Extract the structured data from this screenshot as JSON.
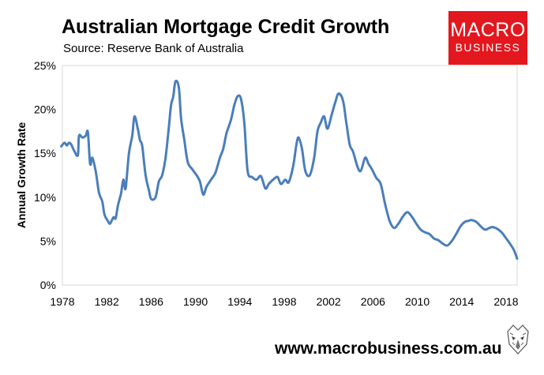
{
  "header": {
    "title": "Australian Mortgage Credit Growth",
    "subtitle": "Source: Reserve Bank of Australia"
  },
  "logo": {
    "line1": "MACRO",
    "line2": "BUSINESS"
  },
  "footer": {
    "url": "www.macrobusiness.com.au"
  },
  "colors": {
    "line": "#4a7ebb",
    "plot_border": "#d9d9d9",
    "logo_bg": "#e3171e"
  },
  "chart_data": {
    "type": "line",
    "title": "Australian Mortgage Credit Growth",
    "subtitle": "Source: Reserve Bank of Australia",
    "xlabel": "",
    "ylabel": "Annual Growth Rate",
    "xlim": [
      1978,
      2019
    ],
    "ylim": [
      0,
      25
    ],
    "x_ticks": [
      1978,
      1982,
      1986,
      1990,
      1994,
      1998,
      2002,
      2006,
      2010,
      2014,
      2018
    ],
    "x_tick_labels": [
      "1978",
      "1982",
      "1986",
      "1990",
      "1994",
      "1998",
      "2002",
      "2006",
      "2010",
      "2014",
      "2018"
    ],
    "y_ticks": [
      0,
      5,
      10,
      15,
      20,
      25
    ],
    "y_tick_labels": [
      "0%",
      "5%",
      "10%",
      "15%",
      "20%",
      "25%"
    ],
    "grid": false,
    "legend": "none",
    "series": [
      {
        "color": "#4a7ebb",
        "x": [
          1977.9,
          1978.2,
          1978.4,
          1978.6,
          1978.8,
          1979.1,
          1979.4,
          1979.5,
          1979.8,
          1980.1,
          1980.3,
          1980.5,
          1980.7,
          1981.0,
          1981.3,
          1981.6,
          1981.8,
          1982.1,
          1982.3,
          1982.6,
          1982.8,
          1983.0,
          1983.2,
          1983.3,
          1983.5,
          1983.7,
          1984.0,
          1984.3,
          1984.5,
          1984.8,
          1985.0,
          1985.2,
          1985.5,
          1985.8,
          1986.0,
          1986.4,
          1986.7,
          1987.0,
          1987.3,
          1987.6,
          1987.8,
          1988.0,
          1988.2,
          1988.5,
          1988.7,
          1989.0,
          1989.3,
          1989.7,
          1990.1,
          1990.4,
          1990.7,
          1991.0,
          1991.4,
          1991.8,
          1992.2,
          1992.5,
          1992.8,
          1993.2,
          1993.5,
          1993.8,
          1994.1,
          1994.4,
          1994.7,
          1995.1,
          1995.5,
          1995.9,
          1996.3,
          1996.6,
          1997.0,
          1997.4,
          1997.7,
          1998.1,
          1998.4,
          1998.8,
          1999.1,
          1999.3,
          1999.6,
          1999.9,
          2000.3,
          2000.7,
          2001.0,
          2001.3,
          2001.6,
          2001.9,
          2002.3,
          2002.6,
          2002.9,
          2003.3,
          2003.6,
          2003.9,
          2004.2,
          2004.6,
          2004.9,
          2005.3,
          2005.6,
          2005.9,
          2006.3,
          2006.7,
          2007.1,
          2007.5,
          2007.9,
          2008.3,
          2008.7,
          2009.1,
          2009.5,
          2009.9,
          2010.3,
          2010.7,
          2011.1,
          2011.5,
          2011.9,
          2012.3,
          2012.7,
          2013.1,
          2013.5,
          2013.9,
          2014.3,
          2014.6,
          2014.9,
          2015.3,
          2015.7,
          2016.1,
          2016.5,
          2016.8,
          2017.2,
          2017.6,
          2017.9,
          2018.3,
          2018.7,
          2019.0
        ],
        "y": [
          15.8,
          16.2,
          15.9,
          16.2,
          16.0,
          15.2,
          14.8,
          17.0,
          16.8,
          17.0,
          17.4,
          13.8,
          14.5,
          13.0,
          10.5,
          9.5,
          8.0,
          7.3,
          7.0,
          7.7,
          7.6,
          9.0,
          10.0,
          10.5,
          12.0,
          11.0,
          15.0,
          17.0,
          19.2,
          17.8,
          16.5,
          15.8,
          12.5,
          10.8,
          9.8,
          10.0,
          11.8,
          12.5,
          14.5,
          18.0,
          20.5,
          21.5,
          23.2,
          22.5,
          19.0,
          16.5,
          14.0,
          13.2,
          12.5,
          11.8,
          10.3,
          11.2,
          12.0,
          12.8,
          14.5,
          15.5,
          17.3,
          18.8,
          20.5,
          21.5,
          21.2,
          18.5,
          13.0,
          12.3,
          12.0,
          12.4,
          11.0,
          11.5,
          12.0,
          12.3,
          11.5,
          12.0,
          11.7,
          13.5,
          16.0,
          16.8,
          15.5,
          13.0,
          12.5,
          14.5,
          17.5,
          18.5,
          19.2,
          17.8,
          19.5,
          20.8,
          21.8,
          21.0,
          18.5,
          16.0,
          15.2,
          13.5,
          13.0,
          14.5,
          13.8,
          13.2,
          12.2,
          11.5,
          9.2,
          7.3,
          6.5,
          7.0,
          7.8,
          8.3,
          7.8,
          7.0,
          6.3,
          6.0,
          5.8,
          5.3,
          5.1,
          4.7,
          4.5,
          5.0,
          5.8,
          6.7,
          7.2,
          7.3,
          7.4,
          7.2,
          6.7,
          6.3,
          6.5,
          6.6,
          6.4,
          6.0,
          5.5,
          4.8,
          4.0,
          3.0
        ]
      }
    ]
  }
}
